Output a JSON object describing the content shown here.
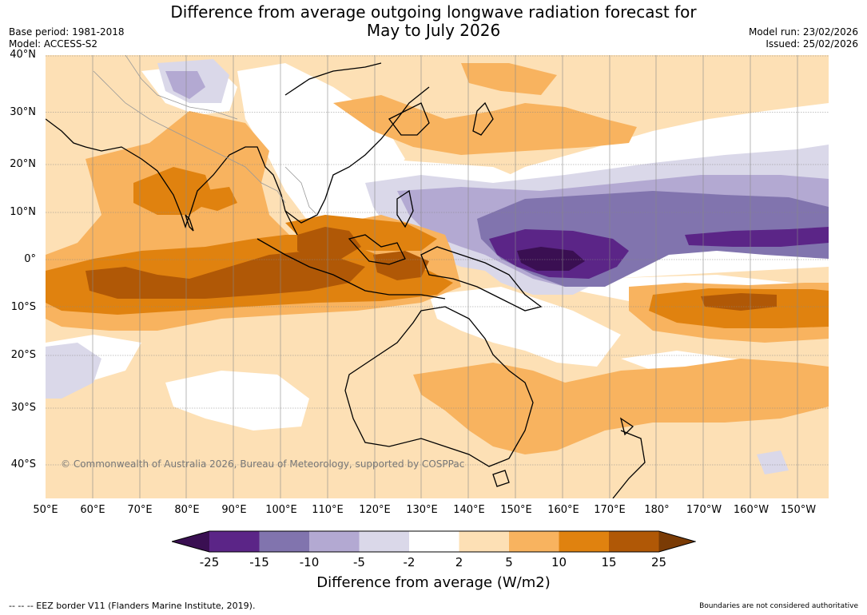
{
  "title_line1": "Difference from average outgoing longwave radiation forecast for",
  "title_line2": "May to July 2026",
  "base_period": "Base period: 1981-2018",
  "model": "Model: ACCESS-S2",
  "model_run": "Model run: 23/02/2026",
  "issued": "Issued: 25/02/2026",
  "lat_labels": [
    "40°N",
    "30°N",
    "20°N",
    "10°N",
    "0°",
    "10°S",
    "20°S",
    "30°S",
    "40°S"
  ],
  "lon_labels": [
    "50°E",
    "60°E",
    "70°E",
    "80°E",
    "90°E",
    "100°E",
    "110°E",
    "120°E",
    "130°E",
    "140°E",
    "150°E",
    "160°E",
    "170°E",
    "180°",
    "170°W",
    "160°W",
    "150°W"
  ],
  "copyright": "© Commonwealth of Australia 2026, Bureau of Meteorology, supported by COSPPac",
  "colorbar": {
    "ticks": [
      "-25",
      "-15",
      "-10",
      "-5",
      "-2",
      "2",
      "5",
      "10",
      "15",
      "25"
    ],
    "colors": [
      "#3a0f52",
      "#5b2587",
      "#8174ae",
      "#b3a9d2",
      "#dad8e9",
      "#ffffff",
      "#fde0b5",
      "#f8b35f",
      "#e0820f",
      "#b05806",
      "#7a3b05"
    ],
    "label": "Difference from average (W/m2)"
  },
  "footer_left": "--  --  -- EEZ border V11 (Flanders Marine Institute, 2019).",
  "footer_right": "Boundaries are not considered authoritative"
}
